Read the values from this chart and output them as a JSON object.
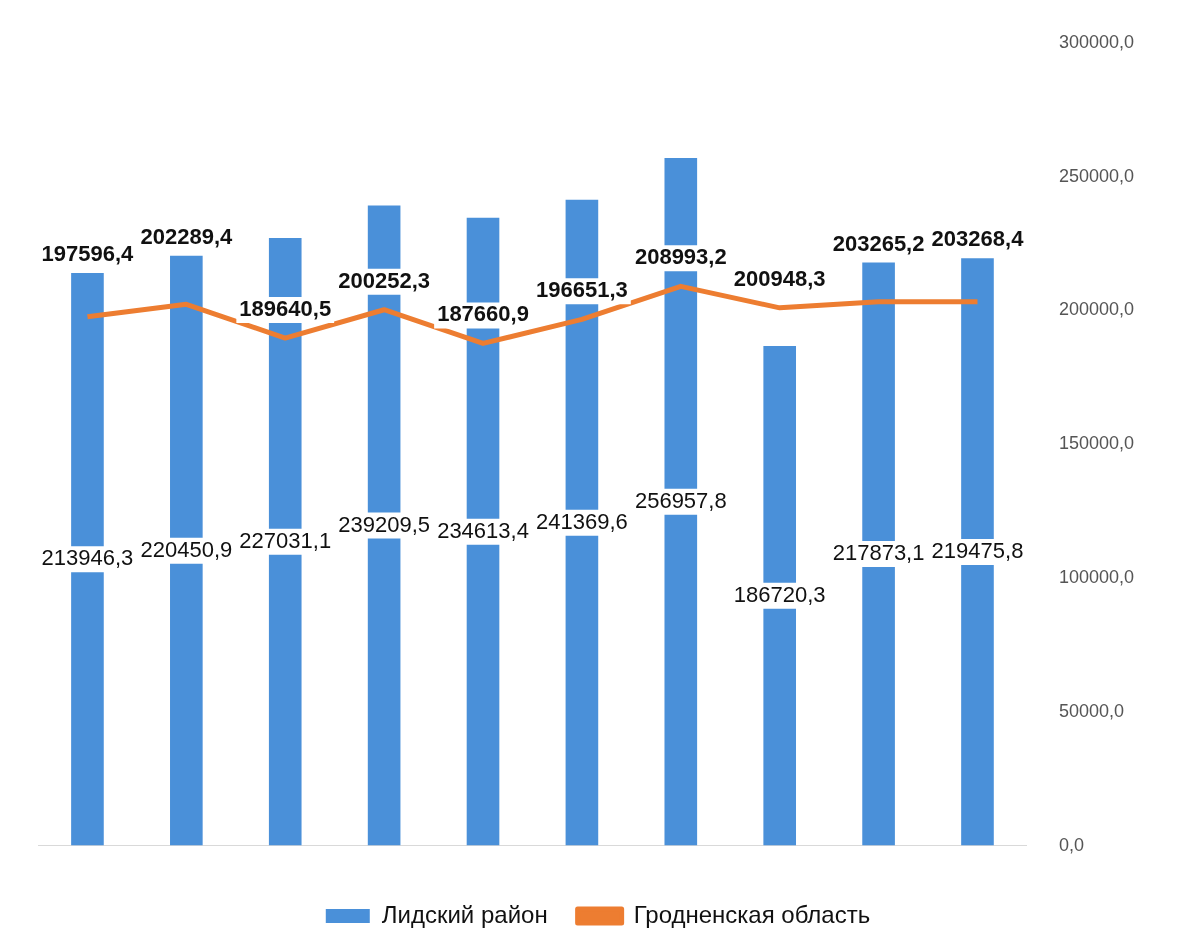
{
  "chart_data": {
    "type": "bar",
    "categories": [
      null,
      null,
      null,
      null,
      null,
      null,
      null,
      null,
      null,
      null
    ],
    "series": [
      {
        "name": "Лидский район",
        "color": "#4a90d9",
        "values": [
          213946.3,
          220450.9,
          227031.1,
          239209.5,
          234613.4,
          241369.6,
          256957.8,
          186720.3,
          217873.1,
          219475.8
        ],
        "value_labels": [
          "213946,3",
          "220450,9",
          "227031,1",
          "239209,5",
          "234613,4",
          "241369,6",
          "256957,8",
          "186720,3",
          "217873,1",
          "219475,8"
        ]
      },
      {
        "name": "Гродненская область",
        "type": "line",
        "color": "#ed7d31",
        "values": [
          197596.4,
          202289.4,
          189640.5,
          200252.3,
          187660.9,
          196651.3,
          208993.2,
          200948.3,
          203265.2,
          203268.4
        ],
        "value_labels": [
          "197596,4",
          "202289,4",
          "189640,5",
          "200252,3",
          "187660,9",
          "196651,3",
          "208993,2",
          "200948,3",
          "203265,2",
          "203268,4"
        ]
      }
    ],
    "ylim": [
      0,
      300000
    ],
    "yticks": [
      {
        "value": 0,
        "label": "0,0"
      },
      {
        "value": 50000,
        "label": "50000,0"
      },
      {
        "value": 100000,
        "label": "100000,0"
      },
      {
        "value": 150000,
        "label": "150000,0"
      },
      {
        "value": 200000,
        "label": "200000,0"
      },
      {
        "value": 250000,
        "label": "250000,0"
      },
      {
        "value": 300000,
        "label": "300000,0"
      }
    ],
    "grid": false,
    "legend": "bottom",
    "marker": "none"
  }
}
